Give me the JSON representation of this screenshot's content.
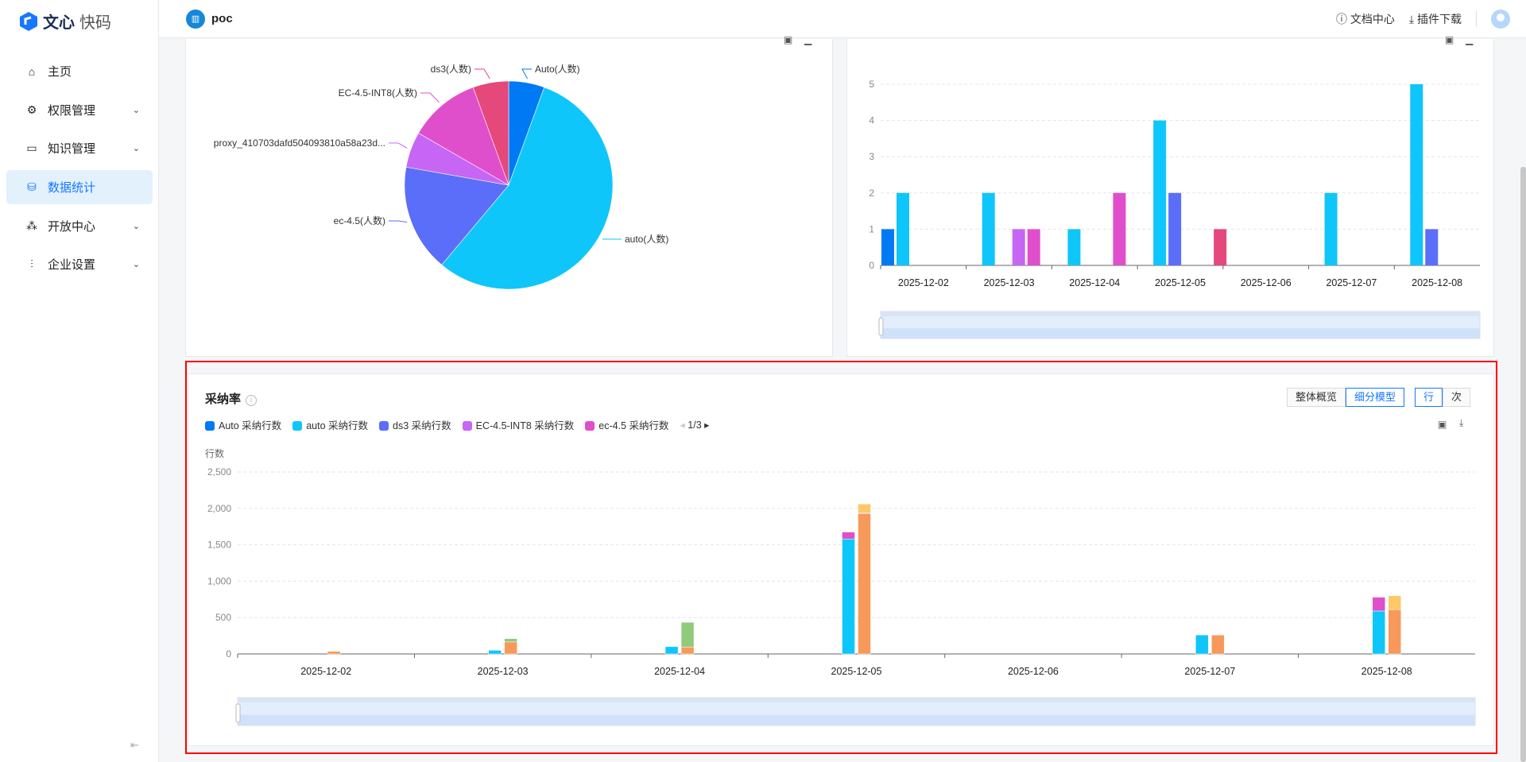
{
  "brand": {
    "name_bold": "文心",
    "name_light": "快码"
  },
  "header": {
    "project_icon": "building-icon",
    "project": "poc",
    "docs": "文档中心",
    "plugin": "插件下载"
  },
  "sidebar": {
    "items": [
      {
        "label": "主页",
        "icon": "home-icon",
        "expandable": false
      },
      {
        "label": "权限管理",
        "icon": "gear-icon",
        "expandable": true
      },
      {
        "label": "知识管理",
        "icon": "book-icon",
        "expandable": true
      },
      {
        "label": "数据统计",
        "icon": "database-icon",
        "expandable": false,
        "active": true
      },
      {
        "label": "开放中心",
        "icon": "cluster-icon",
        "expandable": true
      },
      {
        "label": "企业设置",
        "icon": "chart-settings-icon",
        "expandable": true
      }
    ],
    "collapse_icon": "collapse-menu-icon"
  },
  "adoption": {
    "title": "采纳率",
    "view_toggle": [
      "整体概览",
      "细分模型"
    ],
    "view_selected": "细分模型",
    "unit_toggle": [
      "行",
      "次"
    ],
    "unit_selected": "行",
    "legend": [
      {
        "name": "Auto 采纳行数",
        "color": "#0079f5"
      },
      {
        "name": "auto 采纳行数",
        "color": "#0fc6fa"
      },
      {
        "name": "ds3 采纳行数",
        "color": "#5b6ef9"
      },
      {
        "name": "EC-4.5-INT8 采纳行数",
        "color": "#c766f5"
      },
      {
        "name": "ec-4.5 采纳行数",
        "color": "#e04fcb"
      }
    ],
    "legend_page": "1/3"
  },
  "chart_data": [
    {
      "type": "pie",
      "series": [
        {
          "name": "Auto(人数)",
          "value": 1,
          "color": "#0079f5"
        },
        {
          "name": "auto(人数)",
          "value": 10,
          "color": "#0fc6fa"
        },
        {
          "name": "ec-4.5(人数)",
          "value": 3,
          "color": "#5b6ef9"
        },
        {
          "name": "proxy_410703dafd504093810a58a23d...",
          "value": 1,
          "color": "#c766f5"
        },
        {
          "name": "EC-4.5-INT8(人数)",
          "value": 2,
          "color": "#e04fcb"
        },
        {
          "name": "ds3(人数)",
          "value": 1,
          "color": "#e5487a"
        }
      ]
    },
    {
      "type": "bar",
      "categories": [
        "2025-12-02",
        "2025-12-03",
        "2025-12-04",
        "2025-12-05",
        "2025-12-06",
        "2025-12-07",
        "2025-12-08"
      ],
      "ylim": [
        0,
        5
      ],
      "yticks": [
        0,
        1,
        2,
        3,
        4,
        5
      ],
      "grid": true,
      "series": [
        {
          "color": "#0079f5",
          "values": [
            1,
            0,
            0,
            0,
            0,
            0,
            0
          ]
        },
        {
          "color": "#0fc6fa",
          "values": [
            2,
            2,
            1,
            4,
            0,
            2,
            5
          ]
        },
        {
          "color": "#5b6ef9",
          "values": [
            0,
            0,
            0,
            2,
            0,
            0,
            1
          ]
        },
        {
          "color": "#c766f5",
          "values": [
            0,
            1,
            0,
            0,
            0,
            0,
            0
          ]
        },
        {
          "color": "#e04fcb",
          "values": [
            0,
            1,
            2,
            0,
            0,
            0,
            0
          ]
        },
        {
          "color": "#e5487a",
          "values": [
            0,
            0,
            0,
            1,
            0,
            0,
            0
          ]
        }
      ]
    },
    {
      "type": "bar",
      "stacked": true,
      "categories": [
        "2025-12-02",
        "2025-12-03",
        "2025-12-04",
        "2025-12-05",
        "2025-12-06",
        "2025-12-07",
        "2025-12-08"
      ],
      "ylabel": "行数",
      "ylim": [
        0,
        2500
      ],
      "yticks": [
        "0",
        "500",
        "1,000",
        "1,500",
        "2,000",
        "2,500"
      ],
      "grid": true,
      "series": [
        {
          "stack": "A",
          "color": "#0fc6fa",
          "values": [
            0,
            50,
            100,
            1580,
            0,
            260,
            590
          ]
        },
        {
          "stack": "A",
          "color": "#e04fcb",
          "values": [
            0,
            0,
            0,
            95,
            0,
            0,
            190
          ]
        },
        {
          "stack": "B",
          "color": "#f7995a",
          "values": [
            35,
            165,
            95,
            1930,
            0,
            260,
            610
          ]
        },
        {
          "stack": "B",
          "color": "#c3b3d9",
          "values": [
            0,
            0,
            0,
            10,
            0,
            0,
            0
          ]
        },
        {
          "stack": "B",
          "color": "#8fcb7a",
          "values": [
            0,
            45,
            340,
            0,
            0,
            0,
            0
          ]
        },
        {
          "stack": "B",
          "color": "#fdc868",
          "values": [
            0,
            0,
            0,
            120,
            0,
            0,
            190
          ]
        }
      ]
    }
  ]
}
